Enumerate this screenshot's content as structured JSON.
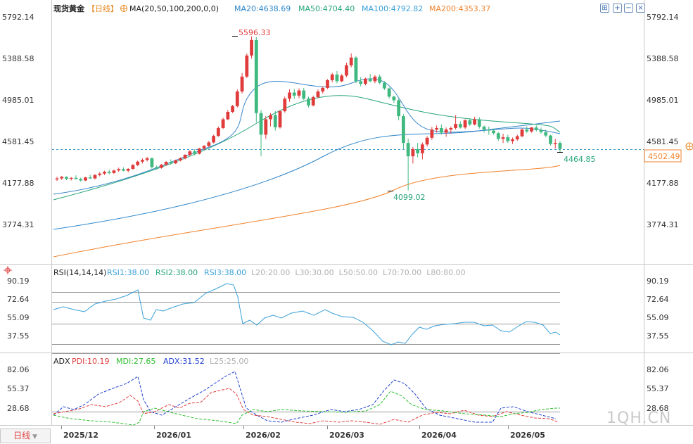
{
  "header": {
    "title": "现货黄金",
    "period": "【日线】",
    "ma_label": "MA(20,50,100,200,0,0)",
    "ma20": "MA20:4638.69",
    "ma50": "MA50:4704.40",
    "ma100": "MA100:4792.82",
    "ma200": "MA200:4353.37",
    "colors": {
      "ma20": "#2e86c9",
      "ma50": "#27a57a",
      "ma100": "#3aa0d8",
      "ma200": "#f0822c"
    }
  },
  "toolbar": {
    "icons": [
      "zoom-fit-icon",
      "zoom-in-icon",
      "zoom-out-icon",
      "close-panel-icon"
    ]
  },
  "main_axis": {
    "ticks": [
      "5792.14",
      "5388.58",
      "4985.01",
      "4581.45",
      "4177.88",
      "3774.31"
    ]
  },
  "price_labels": {
    "current": "4502.49",
    "high": "5596.33",
    "low": "4099.02",
    "last_low": "4464.85"
  },
  "rsi": {
    "label": "RSI(14,14,14)",
    "rsi1": "RSI1:38.00",
    "rsi2": "RSI2:38.00",
    "rsi3": "RSI3:38.00",
    "levels": "L20:20.00  L30:30.00  L50:50.00  L70:70.00  L80:80.00",
    "ticks": [
      "90.19",
      "72.64",
      "55.09",
      "37.55"
    ]
  },
  "adx": {
    "label": "ADX",
    "pdi": "PDI:10.19",
    "mdi": "MDI:27.65",
    "adx": "ADX:31.52",
    "l25": "L25:25.00",
    "ticks": [
      "82.06",
      "55.37",
      "28.68"
    ]
  },
  "xaxis": {
    "labels": [
      "2025/12",
      "2026/01",
      "2026/02",
      "2026/03",
      "2026/04",
      "2026/05"
    ]
  },
  "footer": {
    "timeframe": "日线",
    "watermark": "1QH.CN"
  },
  "chart_data": {
    "type": "candlestick",
    "title": "现货黄金【日线】",
    "x_labels": [
      "2025/12",
      "2026/01",
      "2026/02",
      "2026/03",
      "2026/04",
      "2026/05"
    ],
    "ylim": [
      3680,
      5850
    ],
    "ohlc": [
      [
        4205,
        4232,
        4190,
        4215
      ],
      [
        4215,
        4240,
        4200,
        4230
      ],
      [
        4230,
        4235,
        4198,
        4212
      ],
      [
        4212,
        4228,
        4195,
        4220
      ],
      [
        4220,
        4245,
        4205,
        4210
      ],
      [
        4210,
        4222,
        4185,
        4195
      ],
      [
        4195,
        4230,
        4190,
        4225
      ],
      [
        4225,
        4250,
        4210,
        4215
      ],
      [
        4215,
        4258,
        4205,
        4248
      ],
      [
        4248,
        4275,
        4235,
        4262
      ],
      [
        4262,
        4290,
        4248,
        4280
      ],
      [
        4280,
        4298,
        4255,
        4268
      ],
      [
        4268,
        4300,
        4258,
        4292
      ],
      [
        4292,
        4320,
        4280,
        4305
      ],
      [
        4305,
        4322,
        4284,
        4290
      ],
      [
        4290,
        4315,
        4275,
        4308
      ],
      [
        4308,
        4355,
        4300,
        4345
      ],
      [
        4345,
        4388,
        4335,
        4378
      ],
      [
        4378,
        4410,
        4360,
        4395
      ],
      [
        4395,
        4425,
        4380,
        4410
      ],
      [
        4410,
        4420,
        4310,
        4325
      ],
      [
        4325,
        4340,
        4300,
        4318
      ],
      [
        4318,
        4355,
        4310,
        4348
      ],
      [
        4348,
        4385,
        4340,
        4375
      ],
      [
        4375,
        4400,
        4350,
        4362
      ],
      [
        4362,
        4398,
        4355,
        4390
      ],
      [
        4390,
        4420,
        4380,
        4410
      ],
      [
        4410,
        4450,
        4400,
        4445
      ],
      [
        4445,
        4490,
        4430,
        4478
      ],
      [
        4478,
        4498,
        4440,
        4455
      ],
      [
        4455,
        4512,
        4448,
        4505
      ],
      [
        4505,
        4540,
        4490,
        4530
      ],
      [
        4530,
        4580,
        4520,
        4565
      ],
      [
        4565,
        4640,
        4555,
        4628
      ],
      [
        4628,
        4720,
        4620,
        4705
      ],
      [
        4705,
        4805,
        4695,
        4790
      ],
      [
        4790,
        4880,
        4780,
        4862
      ],
      [
        4862,
        4930,
        4850,
        4918
      ],
      [
        4918,
        5080,
        4905,
        5060
      ],
      [
        5060,
        5240,
        5040,
        5205
      ],
      [
        5205,
        5430,
        5190,
        5410
      ],
      [
        5410,
        5596,
        5380,
        5560
      ],
      [
        5560,
        5590,
        4760,
        4850
      ],
      [
        4850,
        4880,
        4430,
        4640
      ],
      [
        4640,
        4820,
        4600,
        4790
      ],
      [
        4790,
        4850,
        4720,
        4830
      ],
      [
        4830,
        4870,
        4680,
        4712
      ],
      [
        4712,
        4880,
        4700,
        4868
      ],
      [
        4868,
        5010,
        4855,
        4990
      ],
      [
        4990,
        5080,
        4960,
        5050
      ],
      [
        5050,
        5085,
        4990,
        5020
      ],
      [
        5020,
        5090,
        4995,
        5070
      ],
      [
        5070,
        5095,
        4975,
        4990
      ],
      [
        4990,
        5010,
        4905,
        4925
      ],
      [
        4925,
        5020,
        4915,
        5005
      ],
      [
        5005,
        5080,
        4995,
        5060
      ],
      [
        5060,
        5110,
        5040,
        5095
      ],
      [
        5095,
        5180,
        5085,
        5170
      ],
      [
        5170,
        5240,
        5150,
        5225
      ],
      [
        5225,
        5260,
        5140,
        5160
      ],
      [
        5160,
        5230,
        5150,
        5215
      ],
      [
        5215,
        5340,
        5200,
        5315
      ],
      [
        5315,
        5430,
        5295,
        5390
      ],
      [
        5390,
        5405,
        5140,
        5160
      ],
      [
        5160,
        5200,
        5110,
        5135
      ],
      [
        5135,
        5195,
        5120,
        5185
      ],
      [
        5185,
        5230,
        5150,
        5160
      ],
      [
        5160,
        5220,
        5140,
        5205
      ],
      [
        5205,
        5225,
        5130,
        5145
      ],
      [
        5145,
        5160,
        5075,
        5090
      ],
      [
        5090,
        5100,
        4990,
        5010
      ],
      [
        5010,
        5020,
        4950,
        4975
      ],
      [
        4975,
        4990,
        4780,
        4820
      ],
      [
        4820,
        4840,
        4500,
        4560
      ],
      [
        4560,
        4600,
        4099,
        4430
      ],
      [
        4430,
        4520,
        4360,
        4500
      ],
      [
        4500,
        4560,
        4420,
        4460
      ],
      [
        4460,
        4565,
        4400,
        4545
      ],
      [
        4545,
        4625,
        4525,
        4610
      ],
      [
        4610,
        4715,
        4590,
        4690
      ],
      [
        4690,
        4730,
        4660,
        4705
      ],
      [
        4705,
        4740,
        4640,
        4660
      ],
      [
        4660,
        4710,
        4620,
        4690
      ],
      [
        4690,
        4720,
        4650,
        4705
      ],
      [
        4705,
        4830,
        4690,
        4745
      ],
      [
        4745,
        4770,
        4700,
        4710
      ],
      [
        4710,
        4790,
        4695,
        4780
      ],
      [
        4780,
        4800,
        4725,
        4740
      ],
      [
        4740,
        4815,
        4730,
        4790
      ],
      [
        4790,
        4810,
        4700,
        4718
      ],
      [
        4718,
        4730,
        4660,
        4690
      ],
      [
        4690,
        4720,
        4640,
        4680
      ],
      [
        4680,
        4700,
        4640,
        4655
      ],
      [
        4655,
        4665,
        4580,
        4600
      ],
      [
        4600,
        4650,
        4560,
        4615
      ],
      [
        4615,
        4640,
        4560,
        4578
      ],
      [
        4578,
        4612,
        4550,
        4595
      ],
      [
        4595,
        4640,
        4580,
        4625
      ],
      [
        4625,
        4700,
        4615,
        4690
      ],
      [
        4690,
        4720,
        4655,
        4672
      ],
      [
        4672,
        4715,
        4660,
        4710
      ],
      [
        4710,
        4730,
        4670,
        4685
      ],
      [
        4685,
        4710,
        4650,
        4665
      ],
      [
        4665,
        4690,
        4615,
        4632
      ],
      [
        4632,
        4640,
        4535,
        4550
      ],
      [
        4550,
        4598,
        4505,
        4560
      ],
      [
        4560,
        4578,
        4464,
        4502
      ]
    ]
  }
}
